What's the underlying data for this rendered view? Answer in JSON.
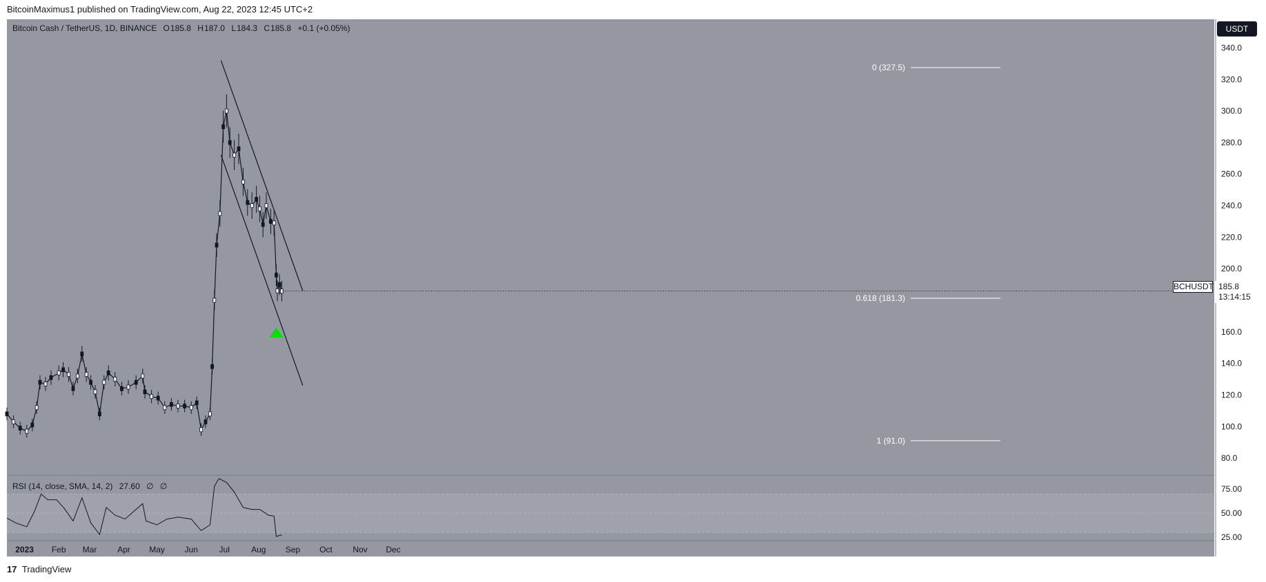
{
  "header": {
    "published": "BitcoinMaximus1 published on TradingView.com, Aug 22, 2023 12:45 UTC+2"
  },
  "symbol": {
    "name": "Bitcoin Cash / TetherUS, 1D, BINANCE",
    "open_label": "O",
    "open": "185.8",
    "high_label": "H",
    "high": "187.0",
    "low_label": "L",
    "low": "184.3",
    "close_label": "C",
    "close": "185.8",
    "change": "+0.1 (+0.05%)"
  },
  "currency_button": "USDT",
  "price_tag": {
    "ticker": "BCHUSDT",
    "price": "185.8",
    "countdown": "13:14:15"
  },
  "fib": [
    {
      "label": "0 (327.5)",
      "value": 327.5
    },
    {
      "label": "0.618 (181.3)",
      "value": 181.3
    },
    {
      "label": "1 (91.0)",
      "value": 91.0
    }
  ],
  "rsi": {
    "title": "RSI (14, close, SMA, 14, 2)",
    "value": "27.60",
    "extra1": "∅",
    "extra2": "∅"
  },
  "footer": {
    "brand": "TradingView"
  },
  "colors": {
    "panel": "#9598a1",
    "candle": "#131722",
    "fib_line": "#ffffff",
    "arrow": "#00e000"
  },
  "chart_data": {
    "type": "candlestick",
    "title": "Bitcoin Cash / TetherUS, 1D, BINANCE",
    "y_ticks": [
      "340.0",
      "320.0",
      "300.0",
      "280.0",
      "260.0",
      "240.0",
      "220.0",
      "200.0",
      "180.0",
      "160.0",
      "140.0",
      "120.0",
      "100.0",
      "80.0"
    ],
    "ylim": [
      70,
      345
    ],
    "x_ticks": [
      "2023",
      "Feb",
      "Mar",
      "Apr",
      "May",
      "Jun",
      "Jul",
      "Aug",
      "Sep",
      "Oct",
      "Nov",
      "Dec"
    ],
    "close_series": [
      {
        "d": "2022-12-16",
        "v": 108
      },
      {
        "d": "2022-12-22",
        "v": 103
      },
      {
        "d": "2022-12-28",
        "v": 99
      },
      {
        "d": "2023-01-03",
        "v": 97
      },
      {
        "d": "2023-01-08",
        "v": 101
      },
      {
        "d": "2023-01-12",
        "v": 112
      },
      {
        "d": "2023-01-15",
        "v": 128
      },
      {
        "d": "2023-01-20",
        "v": 127
      },
      {
        "d": "2023-01-25",
        "v": 131
      },
      {
        "d": "2023-02-01",
        "v": 134
      },
      {
        "d": "2023-02-05",
        "v": 136
      },
      {
        "d": "2023-02-10",
        "v": 133
      },
      {
        "d": "2023-02-14",
        "v": 124
      },
      {
        "d": "2023-02-18",
        "v": 132
      },
      {
        "d": "2023-02-22",
        "v": 146
      },
      {
        "d": "2023-02-26",
        "v": 133
      },
      {
        "d": "2023-03-02",
        "v": 128
      },
      {
        "d": "2023-03-06",
        "v": 122
      },
      {
        "d": "2023-03-10",
        "v": 108
      },
      {
        "d": "2023-03-14",
        "v": 128
      },
      {
        "d": "2023-03-18",
        "v": 134
      },
      {
        "d": "2023-03-24",
        "v": 130
      },
      {
        "d": "2023-03-30",
        "v": 124
      },
      {
        "d": "2023-04-05",
        "v": 125
      },
      {
        "d": "2023-04-12",
        "v": 128
      },
      {
        "d": "2023-04-18",
        "v": 132
      },
      {
        "d": "2023-04-20",
        "v": 122
      },
      {
        "d": "2023-04-26",
        "v": 119
      },
      {
        "d": "2023-05-02",
        "v": 118
      },
      {
        "d": "2023-05-08",
        "v": 112
      },
      {
        "d": "2023-05-14",
        "v": 114
      },
      {
        "d": "2023-05-20",
        "v": 113
      },
      {
        "d": "2023-05-26",
        "v": 113
      },
      {
        "d": "2023-06-01",
        "v": 112
      },
      {
        "d": "2023-06-06",
        "v": 115
      },
      {
        "d": "2023-06-10",
        "v": 98
      },
      {
        "d": "2023-06-14",
        "v": 103
      },
      {
        "d": "2023-06-18",
        "v": 108
      },
      {
        "d": "2023-06-20",
        "v": 138
      },
      {
        "d": "2023-06-22",
        "v": 180
      },
      {
        "d": "2023-06-24",
        "v": 215
      },
      {
        "d": "2023-06-27",
        "v": 235
      },
      {
        "d": "2023-06-30",
        "v": 290
      },
      {
        "d": "2023-07-03",
        "v": 300
      },
      {
        "d": "2023-07-06",
        "v": 280
      },
      {
        "d": "2023-07-10",
        "v": 272
      },
      {
        "d": "2023-07-14",
        "v": 276
      },
      {
        "d": "2023-07-18",
        "v": 255
      },
      {
        "d": "2023-07-22",
        "v": 242
      },
      {
        "d": "2023-07-26",
        "v": 240
      },
      {
        "d": "2023-07-30",
        "v": 244
      },
      {
        "d": "2023-08-02",
        "v": 238
      },
      {
        "d": "2023-08-05",
        "v": 228
      },
      {
        "d": "2023-08-08",
        "v": 240
      },
      {
        "d": "2023-08-12",
        "v": 230
      },
      {
        "d": "2023-08-15",
        "v": 229
      },
      {
        "d": "2023-08-17",
        "v": 196
      },
      {
        "d": "2023-08-18",
        "v": 186
      },
      {
        "d": "2023-08-20",
        "v": 190
      },
      {
        "d": "2023-08-22",
        "v": 185.8
      }
    ],
    "channel_lines": [
      {
        "from": {
          "d": "2023-06-28",
          "v": 332
        },
        "to": {
          "d": "2023-09-10",
          "v": 186
        }
      },
      {
        "from": {
          "d": "2023-06-28",
          "v": 272
        },
        "to": {
          "d": "2023-09-10",
          "v": 126
        }
      }
    ],
    "fib_levels": [
      0,
      0.618,
      1
    ],
    "rsi": {
      "y_ticks": [
        "75.00",
        "50.00",
        "25.00"
      ],
      "ylim": [
        18,
        88
      ],
      "series": [
        {
          "d": "2022-12-16",
          "v": 45
        },
        {
          "d": "2022-12-24",
          "v": 40
        },
        {
          "d": "2023-01-03",
          "v": 36
        },
        {
          "d": "2023-01-10",
          "v": 52
        },
        {
          "d": "2023-01-16",
          "v": 70
        },
        {
          "d": "2023-01-22",
          "v": 64
        },
        {
          "d": "2023-01-30",
          "v": 64
        },
        {
          "d": "2023-02-06",
          "v": 55
        },
        {
          "d": "2023-02-14",
          "v": 42
        },
        {
          "d": "2023-02-22",
          "v": 66
        },
        {
          "d": "2023-03-02",
          "v": 40
        },
        {
          "d": "2023-03-10",
          "v": 28
        },
        {
          "d": "2023-03-16",
          "v": 56
        },
        {
          "d": "2023-03-24",
          "v": 48
        },
        {
          "d": "2023-04-02",
          "v": 44
        },
        {
          "d": "2023-04-10",
          "v": 52
        },
        {
          "d": "2023-04-18",
          "v": 60
        },
        {
          "d": "2023-04-21",
          "v": 42
        },
        {
          "d": "2023-05-01",
          "v": 38
        },
        {
          "d": "2023-05-10",
          "v": 44
        },
        {
          "d": "2023-05-20",
          "v": 46
        },
        {
          "d": "2023-06-01",
          "v": 44
        },
        {
          "d": "2023-06-10",
          "v": 32
        },
        {
          "d": "2023-06-18",
          "v": 38
        },
        {
          "d": "2023-06-22",
          "v": 78
        },
        {
          "d": "2023-06-26",
          "v": 86
        },
        {
          "d": "2023-07-03",
          "v": 82
        },
        {
          "d": "2023-07-10",
          "v": 72
        },
        {
          "d": "2023-07-18",
          "v": 56
        },
        {
          "d": "2023-07-26",
          "v": 54
        },
        {
          "d": "2023-08-02",
          "v": 54
        },
        {
          "d": "2023-08-10",
          "v": 48
        },
        {
          "d": "2023-08-15",
          "v": 47
        },
        {
          "d": "2023-08-17",
          "v": 26
        },
        {
          "d": "2023-08-22",
          "v": 27.6
        }
      ]
    }
  }
}
